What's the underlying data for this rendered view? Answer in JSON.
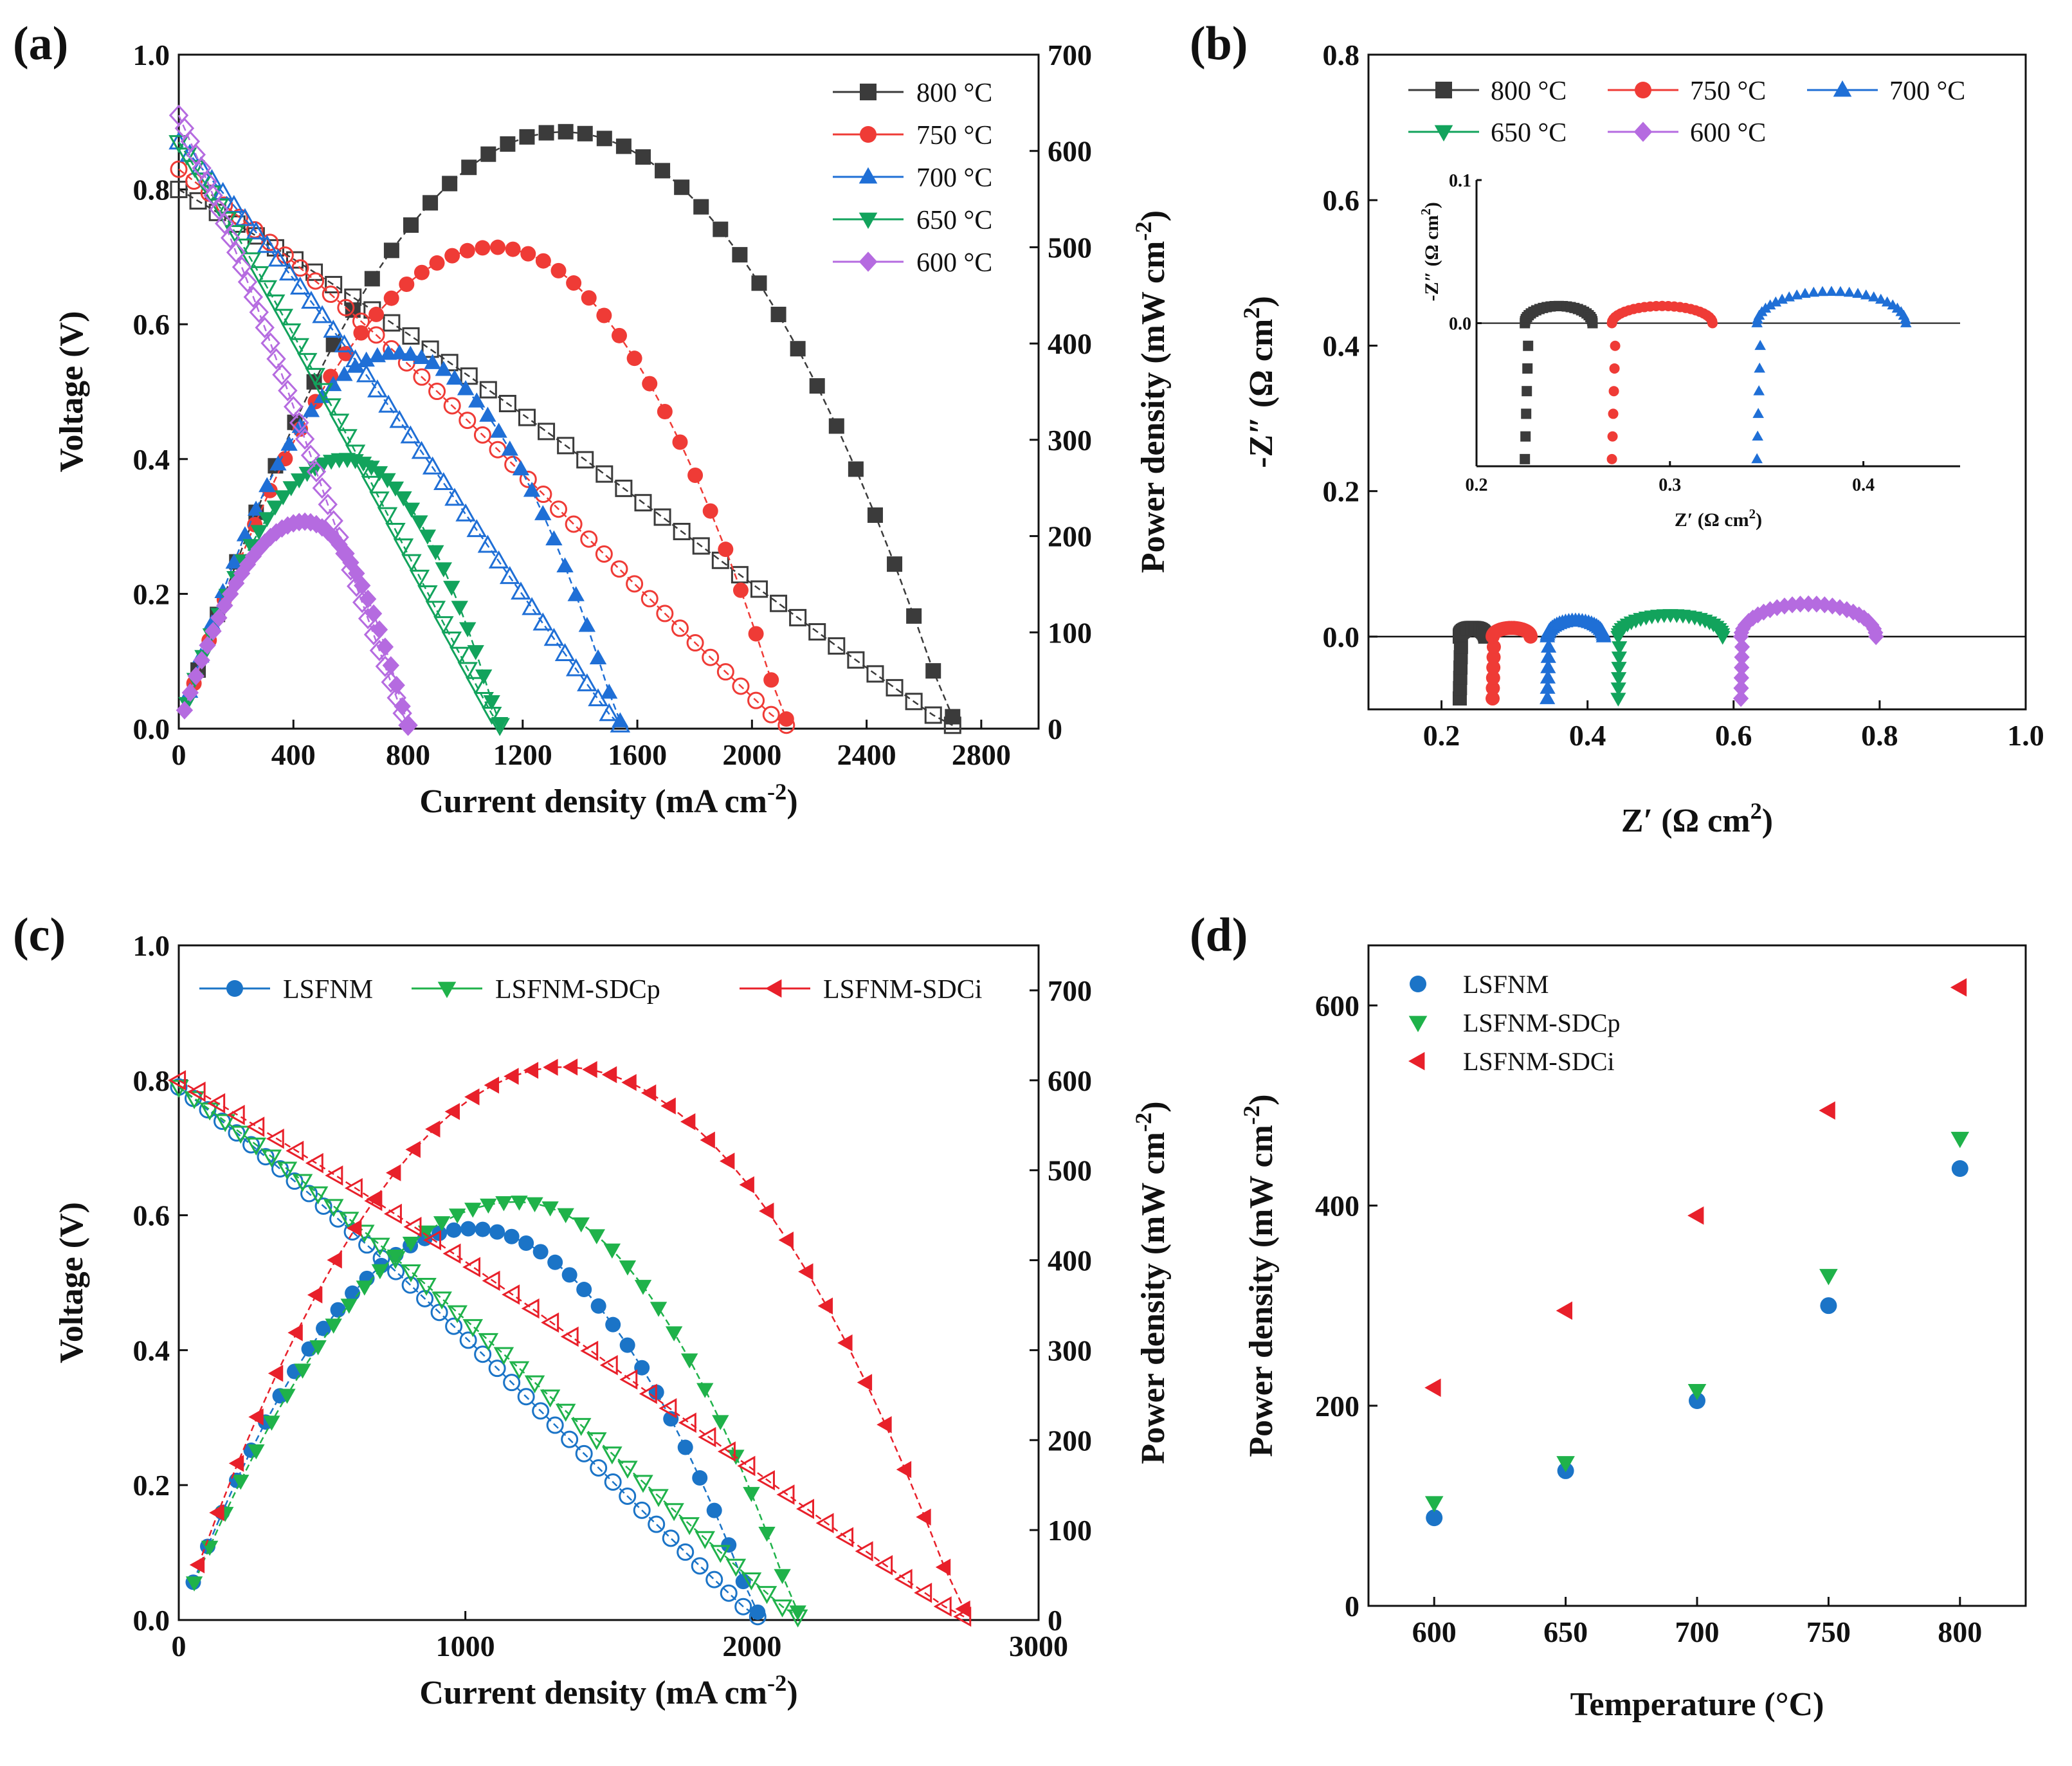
{
  "colors": {
    "black": "#3b3b3b",
    "red": "#ef3b36",
    "blue": "#1f6fd6",
    "green": "#12a35c",
    "purple": "#b56be0",
    "lsfnm": "#1b74c7",
    "sdcp": "#1fb24a",
    "sdci": "#e8202a"
  },
  "panels": {
    "a": "(a)",
    "b": "(b)",
    "c": "(c)",
    "d": "(d)"
  },
  "chart_data": [
    {
      "id": "a",
      "type": "line",
      "xlabel": "Current density (mA cm",
      "xlabel_sup": "-2",
      "xlabel_end": ")",
      "ylabel": "Voltage (V)",
      "y2label": "Power density (mW cm",
      "y2label_sup": "-2",
      "y2label_end": ")",
      "xlim": [
        0,
        3000
      ],
      "ylim": [
        0,
        1.0
      ],
      "y2lim": [
        0,
        700
      ],
      "xticks": [
        "0",
        "400",
        "800",
        "1200",
        "1600",
        "2000",
        "2400",
        "2800"
      ],
      "yticks": [
        "0.0",
        "0.2",
        "0.4",
        "0.6",
        "0.8",
        "1.0"
      ],
      "y2ticks": [
        "0",
        "100",
        "200",
        "300",
        "400",
        "500",
        "600",
        "700"
      ],
      "legend": [
        "800 °C",
        "750 °C",
        "700 °C",
        "650 °C",
        "600 °C"
      ],
      "series": [
        {
          "name": "800 °C",
          "ocv": 0.8,
          "jmax": 2700,
          "pmax": 620,
          "jpeak": 1340
        },
        {
          "name": "750 °C",
          "ocv": 0.83,
          "jmax": 2120,
          "pmax": 500,
          "jpeak": 1100
        },
        {
          "name": "700 °C",
          "ocv": 0.87,
          "jmax": 1540,
          "pmax": 390,
          "jpeak": 760
        },
        {
          "name": "650 °C",
          "ocv": 0.87,
          "jmax": 1120,
          "pmax": 280,
          "jpeak": 580
        },
        {
          "name": "600 °C",
          "ocv": 0.91,
          "jmax": 800,
          "pmax": 215,
          "jpeak": 440
        }
      ]
    },
    {
      "id": "b",
      "type": "scatter",
      "xlabel": "Z′ (Ω cm",
      "xlabel_sup": "2",
      "xlabel_end": ")",
      "ylabel": "-Z″ (Ω cm",
      "ylabel_sup": "2",
      "ylabel_end": ")",
      "xlim": [
        0.1,
        1.0
      ],
      "ylim": [
        -0.1,
        0.8
      ],
      "xticks": [
        "0.2",
        "0.4",
        "0.6",
        "0.8",
        "1.0"
      ],
      "yticks": [
        "0.0",
        "0.2",
        "0.4",
        "0.6",
        "0.8"
      ],
      "legend": [
        "800 °C",
        "750 °C",
        "700 °C",
        "650 °C",
        "600 °C"
      ],
      "arcs": [
        {
          "name": "800 °C",
          "start": 0.225,
          "end": 0.26,
          "height": 0.012
        },
        {
          "name": "750 °C",
          "start": 0.27,
          "end": 0.322,
          "height": 0.012
        },
        {
          "name": "700 °C",
          "start": 0.345,
          "end": 0.422,
          "height": 0.022
        },
        {
          "name": "650 °C",
          "start": 0.442,
          "end": 0.585,
          "height": 0.03
        },
        {
          "name": "600 °C",
          "start": 0.61,
          "end": 0.795,
          "height": 0.045
        }
      ],
      "inset": {
        "xlabel": "Z′ (Ω cm",
        "xlabel_sup": "2",
        "xlabel_end": ")",
        "ylabel": "-Z″ (Ω cm",
        "ylabel_sup": "2",
        "ylabel_end": ")",
        "xlim": [
          0.2,
          0.45
        ],
        "ylim": [
          -0.1,
          0.1
        ],
        "xticks": [
          "0.2",
          "0.3",
          "0.4"
        ],
        "yticks": [
          "0.0",
          "0.1"
        ],
        "series": [
          "800 °C",
          "750 °C",
          "700 °C"
        ]
      }
    },
    {
      "id": "c",
      "type": "line",
      "xlabel": "Current density (mA cm",
      "xlabel_sup": "-2",
      "xlabel_end": ")",
      "ylabel": "Voltage (V)",
      "y2label": "Power density (mW cm",
      "y2label_sup": "-2",
      "y2label_end": ")",
      "xlim": [
        0,
        3000
      ],
      "ylim": [
        0,
        1.0
      ],
      "y2lim": [
        0,
        750
      ],
      "xticks": [
        "0",
        "1000",
        "2000",
        "3000"
      ],
      "yticks": [
        "0.0",
        "0.2",
        "0.4",
        "0.6",
        "0.8",
        "1.0"
      ],
      "y2ticks": [
        "0",
        "100",
        "200",
        "300",
        "400",
        "500",
        "600",
        "700"
      ],
      "legend": [
        "LSFNM",
        "LSFNM-SDCp",
        "LSFNM-SDCi"
      ],
      "series": [
        {
          "name": "LSFNM",
          "ocv": 0.79,
          "jmax": 2020,
          "pmax": 435,
          "jpeak": 1020
        },
        {
          "name": "LSFNM-SDCp",
          "ocv": 0.79,
          "jmax": 2160,
          "pmax": 465,
          "jpeak": 1180
        },
        {
          "name": "LSFNM-SDCi",
          "ocv": 0.8,
          "jmax": 2740,
          "pmax": 615,
          "jpeak": 1340
        }
      ]
    },
    {
      "id": "d",
      "type": "scatter",
      "xlabel": "Temperature (°C)",
      "ylabel": "Power density (mW cm",
      "ylabel_sup": "-2",
      "ylabel_end": ")",
      "xlim": [
        575,
        825
      ],
      "ylim": [
        0,
        660
      ],
      "xticks": [
        "600",
        "650",
        "700",
        "750",
        "800"
      ],
      "yticks": [
        "0",
        "200",
        "400",
        "600"
      ],
      "categories": [
        600,
        650,
        700,
        750,
        800
      ],
      "legend": [
        "LSFNM",
        "LSFNM-SDCp",
        "LSFNM-SDCi"
      ],
      "series": [
        {
          "name": "LSFNM",
          "values": [
            88,
            135,
            205,
            300,
            437
          ]
        },
        {
          "name": "LSFNM-SDCp",
          "values": [
            103,
            143,
            215,
            330,
            467
          ]
        },
        {
          "name": "LSFNM-SDCi",
          "values": [
            218,
            295,
            390,
            495,
            618
          ]
        }
      ]
    }
  ]
}
